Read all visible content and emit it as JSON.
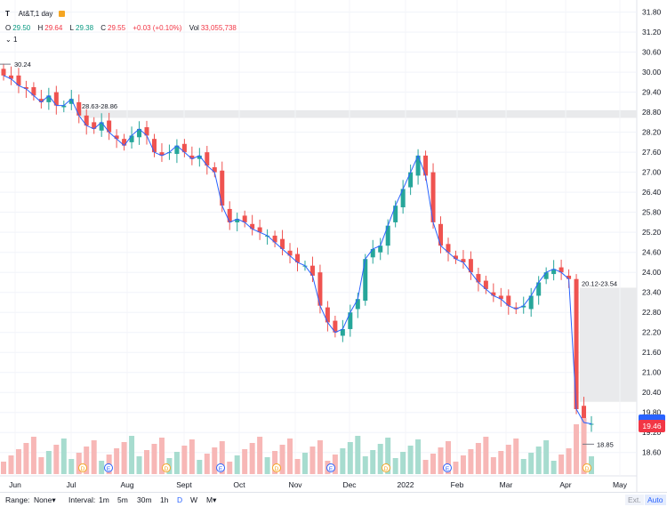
{
  "legend": {
    "symbol": "T",
    "title": "At&T,1 day",
    "open_label": "O",
    "open": "29.50",
    "high_label": "H",
    "high": "29.64",
    "low_label": "L",
    "low": "29.38",
    "close_label": "C",
    "close": "29.55",
    "change": "+0.03 (+0.10%)",
    "vol_label": "Vol",
    "vol": "33,055,738",
    "collapse": "⌄",
    "indicator_count": "1"
  },
  "price_tag": "19.46",
  "bottom_bar": {
    "range_label": "Range:",
    "range_value": "None",
    "interval_label": "Interval:",
    "intervals": [
      "1m",
      "5m",
      "30m",
      "1h",
      "D",
      "W",
      "M"
    ],
    "ext": "Ext.",
    "auto": "Auto"
  },
  "annotations": {
    "high_marker": "30.24",
    "low_marker": "18.85",
    "gap1": "28.63-28.86",
    "gap2": "20.12-23.54"
  },
  "chart_data": {
    "type": "candlestick",
    "title": "At&T,1 day",
    "y_ticks": [
      "31.80",
      "31.20",
      "30.60",
      "30.00",
      "29.40",
      "28.80",
      "28.20",
      "27.60",
      "27.00",
      "26.40",
      "25.80",
      "25.20",
      "24.60",
      "24.00",
      "23.40",
      "22.80",
      "22.20",
      "21.60",
      "21.00",
      "20.40",
      "19.80",
      "19.20",
      "18.60"
    ],
    "ylim": [
      18.3,
      31.95
    ],
    "x_ticks": [
      "Jun",
      "Jul",
      "Aug",
      "Sept",
      "Oct",
      "Nov",
      "Dec",
      "2022",
      "Feb",
      "Mar",
      "Apr",
      "May"
    ],
    "close_series": [
      29.9,
      29.8,
      29.6,
      29.5,
      29.3,
      29.1,
      29.3,
      29.0,
      29.0,
      29.2,
      28.7,
      28.4,
      28.3,
      28.5,
      28.2,
      28.0,
      27.8,
      28.1,
      28.3,
      28.1,
      27.6,
      27.5,
      27.6,
      27.8,
      27.6,
      27.4,
      27.5,
      27.2,
      27.0,
      26.0,
      25.5,
      25.6,
      25.5,
      25.3,
      25.2,
      25.1,
      24.9,
      24.7,
      24.5,
      24.3,
      24.2,
      23.9,
      23.0,
      22.5,
      22.2,
      22.3,
      22.8,
      23.2,
      24.4,
      24.7,
      24.8,
      25.4,
      26.0,
      26.5,
      27.0,
      27.5,
      26.9,
      25.5,
      24.8,
      24.6,
      24.4,
      24.3,
      24.0,
      23.7,
      23.5,
      23.3,
      23.2,
      23.0,
      22.9,
      23.0,
      23.3,
      23.7,
      24.0,
      24.1,
      24.0,
      23.8,
      19.9,
      19.5,
      19.46
    ],
    "volume_note": "volume histogram at bottom",
    "event_markers": [
      "D",
      "E",
      "D",
      "E",
      "D",
      "E",
      "D",
      "E",
      "D"
    ],
    "colors": {
      "up": "#26a69a",
      "down": "#ef5350",
      "ma": "#2962ff"
    }
  }
}
